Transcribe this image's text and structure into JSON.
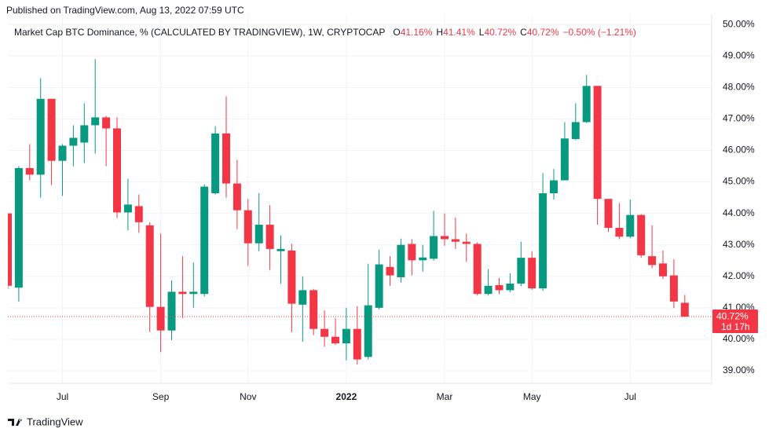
{
  "header": {
    "published": "Published on TradingView.com, Aug 13, 2022 07:59 UTC"
  },
  "chart_data": {
    "type": "candlestick",
    "title": "Market Cap BTC Dominance, % (CALCULATED BY TRADINGVIEW), 1W, CRYPTOCAP",
    "ohlc": [
      {
        "key": "O",
        "value": 41.16,
        "label": "41.16%"
      },
      {
        "key": "H",
        "value": 41.41,
        "label": "41.41%"
      },
      {
        "key": "L",
        "value": 40.72,
        "label": "40.72%"
      },
      {
        "key": "C",
        "value": 40.72,
        "label": "40.72%"
      }
    ],
    "change": "−0.50% (−1.21%)",
    "last_price": {
      "value": 40.72,
      "label": "40.72%",
      "countdown": "1d 17h"
    },
    "up_color": "#089981",
    "down_color": "#f23645",
    "grid": true,
    "open": [
      44.0,
      41.64,
      45.44,
      45.23,
      47.64,
      45.67,
      46.15,
      46.25,
      46.8,
      47.05,
      46.7,
      44.03,
      44.23,
      43.62,
      41.03,
      40.28,
      41.51,
      41.44,
      41.44,
      44.64,
      46.54,
      44.95,
      44.1,
      43.05,
      43.64,
      42.8,
      42.82,
      41.1,
      41.56,
      40.33,
      40.08,
      39.87,
      40.33,
      39.44,
      41.0,
      42.3,
      41.97,
      43.03,
      42.51,
      42.56,
      43.28,
      43.18,
      43.1,
      43.03,
      41.44,
      41.72,
      41.56,
      41.77,
      42.59,
      41.62,
      44.64,
      45.05,
      46.36,
      46.9,
      48.05,
      44.46,
      43.54,
      43.26,
      43.95,
      42.64,
      42.41,
      42.03,
      41.16
    ],
    "high": [
      44.0,
      45.5,
      46.2,
      48.3,
      47.64,
      46.2,
      46.8,
      47.5,
      48.9,
      47.1,
      47.05,
      45.1,
      44.6,
      43.72,
      43.36,
      41.87,
      42.64,
      42.44,
      44.92,
      46.77,
      47.72,
      45.7,
      44.46,
      44.64,
      44.26,
      43.3,
      43.03,
      42.0,
      41.6,
      40.92,
      40.67,
      41.0,
      41.05,
      42.4,
      42.85,
      42.64,
      43.2,
      43.18,
      43.0,
      44.08,
      44.0,
      43.87,
      43.36,
      43.08,
      42.23,
      41.95,
      42.1,
      43.1,
      42.8,
      45.28,
      45.41,
      46.9,
      47.5,
      48.4,
      48.05,
      44.38,
      44.33,
      44.44,
      43.98,
      43.62,
      42.82,
      42.54,
      41.41
    ],
    "low": [
      41.6,
      41.2,
      45.05,
      44.5,
      44.9,
      44.56,
      45.5,
      45.6,
      45.9,
      45.5,
      43.85,
      43.46,
      43.38,
      40.23,
      39.59,
      39.97,
      40.67,
      41.0,
      41.36,
      44.6,
      44.5,
      43.5,
      42.33,
      42.8,
      42.2,
      41.77,
      40.23,
      39.92,
      40.13,
      39.77,
      39.82,
      39.33,
      39.2,
      39.36,
      40.95,
      41.7,
      41.8,
      42.03,
      42.15,
      42.5,
      42.97,
      42.87,
      42.46,
      41.39,
      41.39,
      41.44,
      41.49,
      41.69,
      41.57,
      41.54,
      44.44,
      45.05,
      46.33,
      46.87,
      43.64,
      43.41,
      43.18,
      43.21,
      42.59,
      42.26,
      41.92,
      40.99,
      40.72
    ],
    "close": [
      41.7,
      45.44,
      45.23,
      47.64,
      45.67,
      46.15,
      46.4,
      46.8,
      47.05,
      46.7,
      44.03,
      44.28,
      43.72,
      41.03,
      40.28,
      41.51,
      41.44,
      41.51,
      44.85,
      46.54,
      44.95,
      44.1,
      43.05,
      43.64,
      42.87,
      42.87,
      41.13,
      41.56,
      40.33,
      40.08,
      39.87,
      40.33,
      39.36,
      41.08,
      42.38,
      42.03,
      43.0,
      42.51,
      42.6,
      43.28,
      43.18,
      43.1,
      43.03,
      41.44,
      41.7,
      41.56,
      41.77,
      42.59,
      41.62,
      44.64,
      45.05,
      46.38,
      46.9,
      48.05,
      44.46,
      43.54,
      43.26,
      43.95,
      42.67,
      42.36,
      42.0,
      41.2,
      40.72
    ],
    "ylim": [
      38.6,
      50.33
    ],
    "yticks": [
      {
        "value": 39,
        "label": "39.00%"
      },
      {
        "value": 40,
        "label": "40.00%"
      },
      {
        "value": 41,
        "label": "41.00%"
      },
      {
        "value": 42,
        "label": "42.00%"
      },
      {
        "value": 43,
        "label": "43.00%"
      },
      {
        "value": 44,
        "label": "44.00%"
      },
      {
        "value": 45,
        "label": "45.00%"
      },
      {
        "value": 46,
        "label": "46.00%"
      },
      {
        "value": 47,
        "label": "47.00%"
      },
      {
        "value": 48,
        "label": "48.00%"
      },
      {
        "value": 49,
        "label": "49.00%"
      },
      {
        "value": 50,
        "label": "50.00%"
      }
    ],
    "xticks": [
      {
        "value": 5,
        "label": "Jul"
      },
      {
        "value": 14,
        "label": "Sep"
      },
      {
        "value": 22,
        "label": "Nov"
      },
      {
        "value": 31,
        "label": "2022"
      },
      {
        "value": 40,
        "label": "Mar"
      },
      {
        "value": 48,
        "label": "May"
      },
      {
        "value": 57,
        "label": "Jul"
      }
    ]
  },
  "footer": {
    "brand": "TradingView"
  }
}
